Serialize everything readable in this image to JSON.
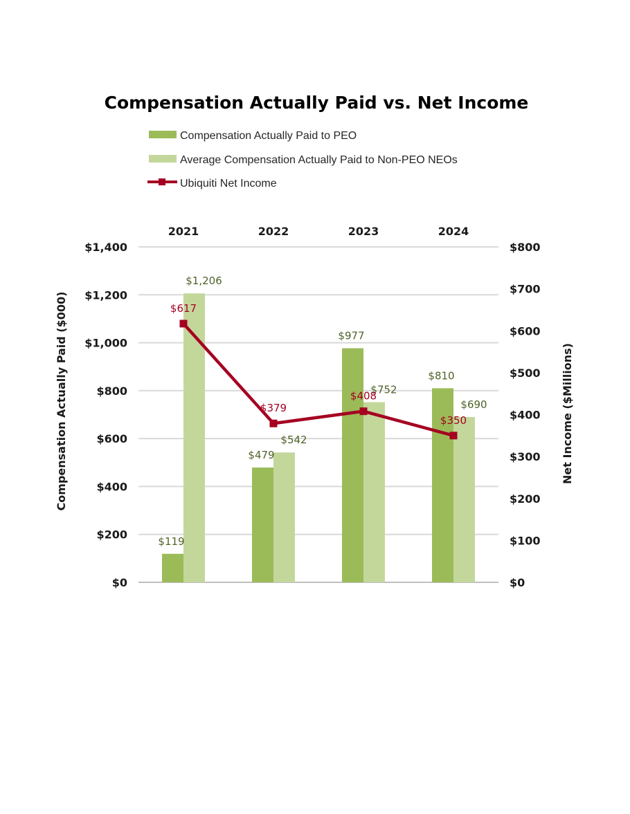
{
  "chart_data": {
    "type": "bar+line",
    "title": "Compensation Actually Paid vs. Net Income",
    "categories": [
      "2021",
      "2022",
      "2023",
      "2024"
    ],
    "series": [
      {
        "name": "Compensation Actually Paid to PEO",
        "type": "bar",
        "axis": "left",
        "color": "#9BBB59",
        "values": [
          119,
          479,
          977,
          810
        ],
        "labels": [
          "$119",
          "$479",
          "$977",
          "$810"
        ]
      },
      {
        "name": "Average Compensation Actually Paid to Non-PEO NEOs",
        "type": "bar",
        "axis": "left",
        "color": "#C4D79B",
        "values": [
          1206,
          542,
          752,
          690
        ],
        "labels": [
          "$1,206",
          "$542",
          "$752",
          "$690"
        ]
      },
      {
        "name": "Ubiquiti Net Income",
        "type": "line",
        "axis": "right",
        "color": "#A50021",
        "values": [
          617,
          379,
          408,
          350
        ],
        "labels": [
          "$617",
          "$379",
          "$408",
          "$350"
        ]
      }
    ],
    "ylabel": "Compensation Actually Paid ($000)",
    "ylabel_right": "Net Income ($Millions)",
    "ylim": [
      0,
      1400
    ],
    "ylim_right": [
      0,
      800
    ],
    "yticks": [
      "$0",
      "$200",
      "$400",
      "$600",
      "$800",
      "$1,000",
      "$1,200",
      "$1,400"
    ],
    "yticks_right": [
      "$0",
      "$100",
      "$200",
      "$300",
      "$400",
      "$500",
      "$600",
      "$700",
      "$800"
    ],
    "data_label_color": "#4F6228",
    "grid": true,
    "legend_placement": "top",
    "category_axis_position": "top"
  }
}
